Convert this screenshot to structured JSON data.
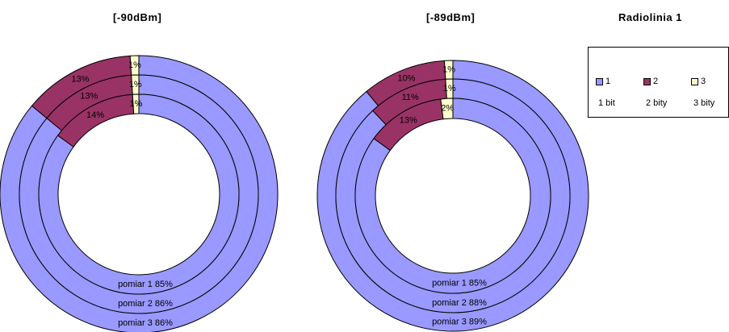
{
  "titles": {
    "left": "[-90dBm]",
    "right": "[-89dBm]",
    "legend_title": "Radiolinia 1"
  },
  "legend": [
    {
      "key": "1",
      "desc": "1 bit",
      "color": "#9999FF"
    },
    {
      "key": "2",
      "desc": "2 bity",
      "color": "#993366"
    },
    {
      "key": "3",
      "desc": "3 bity",
      "color": "#FFFFCC"
    }
  ],
  "chart_data": [
    {
      "type": "donut",
      "title": "[-90dBm]",
      "series_order_outer_to_inner": [
        "pomiar 3",
        "pomiar 2",
        "pomiar 1"
      ],
      "categories": [
        "1",
        "2",
        "3"
      ],
      "series": [
        {
          "name": "pomiar 1",
          "values": [
            85,
            14,
            1
          ],
          "labels": [
            "pomiar 1  85%",
            "14%",
            "1%"
          ]
        },
        {
          "name": "pomiar 2",
          "values": [
            86,
            13,
            1
          ],
          "labels": [
            "pomiar 2  86%",
            "13%",
            "1%"
          ]
        },
        {
          "name": "pomiar 3",
          "values": [
            86,
            13,
            1
          ],
          "labels": [
            "pomiar 3  86%",
            "13%",
            "1%"
          ]
        }
      ]
    },
    {
      "type": "donut",
      "title": "[-89dBm]",
      "series_order_outer_to_inner": [
        "pomiar 3",
        "pomiar 2",
        "pomiar 1"
      ],
      "categories": [
        "1",
        "2",
        "3"
      ],
      "series": [
        {
          "name": "pomiar 1",
          "values": [
            85,
            13,
            2
          ],
          "labels": [
            "pomiar 1  85%",
            "13%",
            "2%"
          ]
        },
        {
          "name": "pomiar 2",
          "values": [
            88,
            11,
            1
          ],
          "labels": [
            "pomiar 2  88%",
            "11%",
            "1%"
          ]
        },
        {
          "name": "pomiar 3",
          "values": [
            89,
            10,
            1
          ],
          "labels": [
            "pomiar 3  89%",
            "10%",
            "1%"
          ]
        }
      ]
    }
  ]
}
